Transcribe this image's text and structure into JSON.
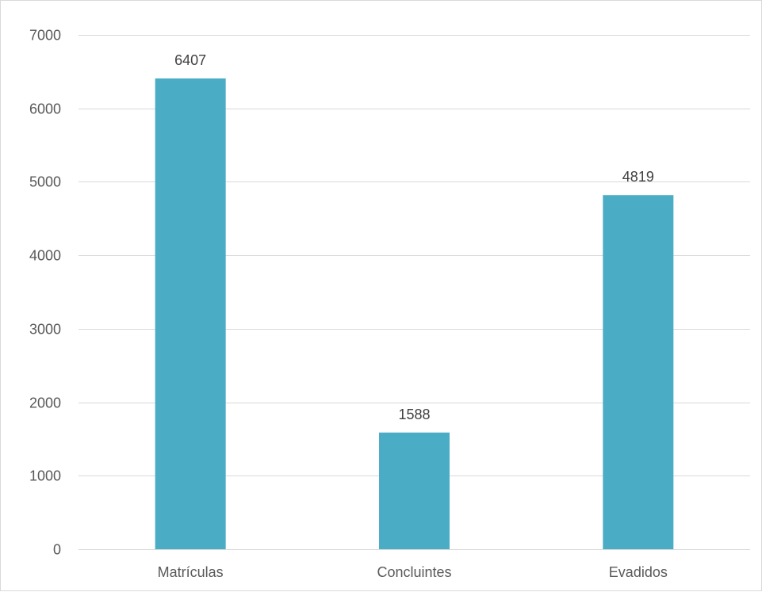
{
  "chart_data": {
    "type": "bar",
    "categories": [
      "Matrículas",
      "Concluintes",
      "Evadidos"
    ],
    "values": [
      6407,
      1588,
      4819
    ],
    "data_labels": [
      "6407",
      "1588",
      "4819"
    ],
    "title": "",
    "xlabel": "",
    "ylabel": "",
    "ylim": [
      0,
      7000
    ],
    "yticks": [
      0,
      1000,
      2000,
      3000,
      4000,
      5000,
      6000,
      7000
    ],
    "ytick_labels": [
      "0",
      "1000",
      "2000",
      "3000",
      "4000",
      "5000",
      "6000",
      "7000"
    ],
    "grid": true,
    "legend": "none",
    "bar_color": "#4bacc6",
    "grid_color": "#d9d9d9"
  }
}
